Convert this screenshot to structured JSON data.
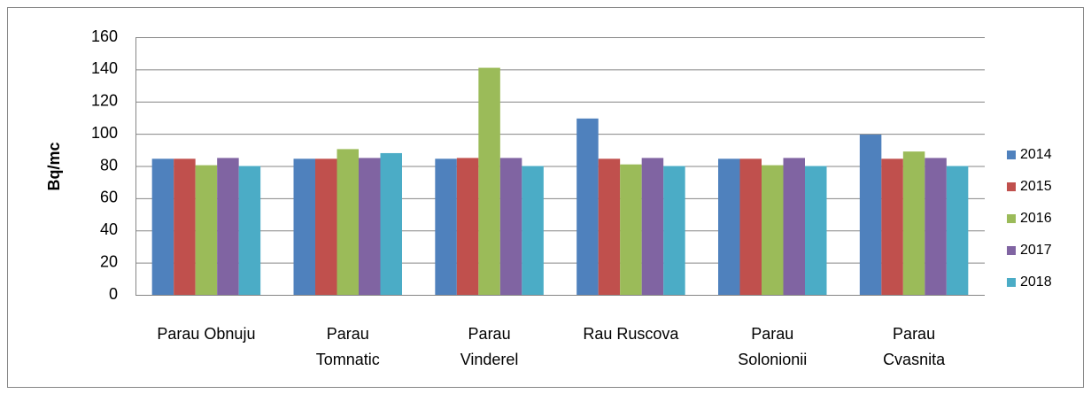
{
  "chart_data": {
    "type": "bar",
    "y_label": "Bq/mc",
    "categories": [
      "Parau Obnuju",
      "Parau\nTomnatic",
      "Parau\nVinderel",
      "Rau Ruscova",
      "Parau\nSolonionii",
      "Parau\nCvasnita"
    ],
    "series": [
      {
        "name": "2014",
        "color": "#4f81bd",
        "values": [
          84.5,
          84.5,
          84.5,
          109.5,
          84.5,
          99.5
        ]
      },
      {
        "name": "2015",
        "color": "#c0504d",
        "values": [
          84.5,
          84.5,
          85,
          84.5,
          84.5,
          84.5
        ]
      },
      {
        "name": "2016",
        "color": "#9bbb59",
        "values": [
          80.5,
          90.5,
          141,
          81,
          80.5,
          89
        ]
      },
      {
        "name": "2017",
        "color": "#8064a2",
        "values": [
          85,
          85,
          85,
          85,
          85,
          85
        ]
      },
      {
        "name": "2018",
        "color": "#4bacc6",
        "values": [
          80,
          88,
          80,
          80,
          80,
          80
        ]
      }
    ],
    "ylim": [
      0,
      160
    ],
    "yticks": [
      0,
      20,
      40,
      60,
      80,
      100,
      120,
      140,
      160
    ],
    "grid": true,
    "legend": "right"
  }
}
